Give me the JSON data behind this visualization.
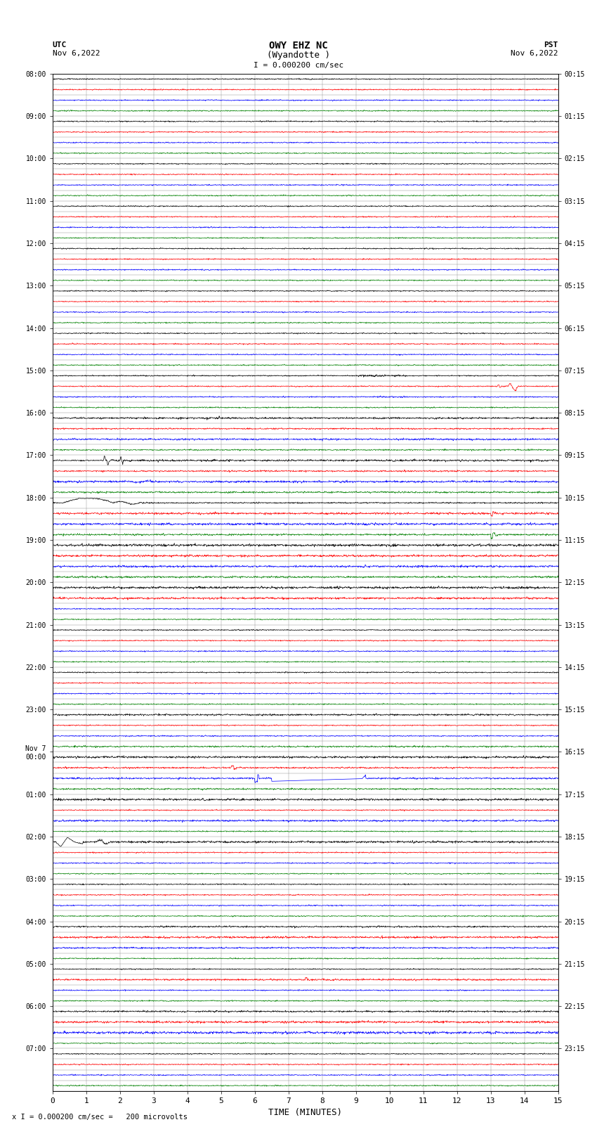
{
  "title_line1": "OWY EHZ NC",
  "title_line2": "(Wyandotte )",
  "scale_label": "I = 0.000200 cm/sec",
  "bottom_label": "x I = 0.000200 cm/sec =   200 microvolts",
  "xlabel": "TIME (MINUTES)",
  "left_label_top": "UTC",
  "left_label_date": "Nov 6,2022",
  "right_label_top": "PST",
  "right_label_date": "Nov 6,2022",
  "utc_row_labels": [
    "08:00",
    "",
    "",
    "",
    "09:00",
    "",
    "",
    "",
    "10:00",
    "",
    "",
    "",
    "11:00",
    "",
    "",
    "",
    "12:00",
    "",
    "",
    "",
    "13:00",
    "",
    "",
    "",
    "14:00",
    "",
    "",
    "",
    "15:00",
    "",
    "",
    "",
    "16:00",
    "",
    "",
    "",
    "17:00",
    "",
    "",
    "",
    "18:00",
    "",
    "",
    "",
    "19:00",
    "",
    "",
    "",
    "20:00",
    "",
    "",
    "",
    "21:00",
    "",
    "",
    "",
    "22:00",
    "",
    "",
    "",
    "23:00",
    "",
    "",
    "",
    "Nov 7\n00:00",
    "",
    "",
    "",
    "01:00",
    "",
    "",
    "",
    "02:00",
    "",
    "",
    "",
    "03:00",
    "",
    "",
    "",
    "04:00",
    "",
    "",
    "",
    "05:00",
    "",
    "",
    "",
    "06:00",
    "",
    "",
    "",
    "07:00",
    "",
    "",
    ""
  ],
  "pst_row_labels": [
    "00:15",
    "",
    "",
    "",
    "01:15",
    "",
    "",
    "",
    "02:15",
    "",
    "",
    "",
    "03:15",
    "",
    "",
    "",
    "04:15",
    "",
    "",
    "",
    "05:15",
    "",
    "",
    "",
    "06:15",
    "",
    "",
    "",
    "07:15",
    "",
    "",
    "",
    "08:15",
    "",
    "",
    "",
    "09:15",
    "",
    "",
    "",
    "10:15",
    "",
    "",
    "",
    "11:15",
    "",
    "",
    "",
    "12:15",
    "",
    "",
    "",
    "13:15",
    "",
    "",
    "",
    "14:15",
    "",
    "",
    "",
    "15:15",
    "",
    "",
    "",
    "16:15",
    "",
    "",
    "",
    "17:15",
    "",
    "",
    "",
    "18:15",
    "",
    "",
    "",
    "19:15",
    "",
    "",
    "",
    "20:15",
    "",
    "",
    "",
    "21:15",
    "",
    "",
    "",
    "22:15",
    "",
    "",
    "",
    "23:15",
    "",
    "",
    ""
  ],
  "n_rows": 96,
  "bg_color": "#ffffff",
  "grid_color": "#888888",
  "trace_colors": [
    "#000000",
    "#ff0000",
    "#0000ff",
    "#008000"
  ],
  "figsize": [
    8.5,
    16.13
  ]
}
